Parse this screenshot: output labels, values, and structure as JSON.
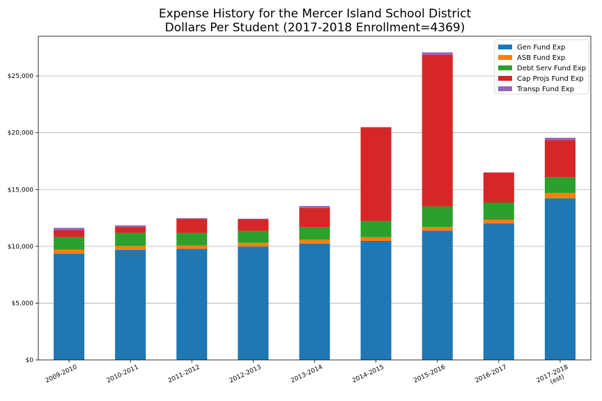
{
  "chart_data": {
    "type": "bar",
    "stacked": true,
    "title": [
      "Expense History for the Mercer Island School District",
      "Dollars Per Student (2017-2018 Enrollment=4369)"
    ],
    "xlabel": "",
    "ylabel": "",
    "categories": [
      "2009-2010",
      "2010-2011",
      "2011-2012",
      "2012-2013",
      "2013-2014",
      "2014-2015",
      "2015-2016",
      "2016-2017",
      "2017-2018\n(est)"
    ],
    "ylim": [
      0,
      28500
    ],
    "yticks": [
      0,
      5000,
      10000,
      15000,
      20000,
      25000
    ],
    "ytick_labels": [
      "$0",
      "$5,000",
      "$10,000",
      "$15,000",
      "$20,000",
      "$25,000"
    ],
    "grid": "horizontal",
    "legend_position": "top-right",
    "series": [
      {
        "name": "Gen Fund Exp",
        "color": "#1f77b4",
        "values": [
          9350,
          9700,
          9780,
          9980,
          10250,
          10480,
          11380,
          12030,
          14230
        ]
      },
      {
        "name": "ASB Fund Exp",
        "color": "#ff7f0e",
        "values": [
          350,
          330,
          300,
          330,
          350,
          320,
          330,
          300,
          480
        ]
      },
      {
        "name": "Debt Serv Fund Exp",
        "color": "#2ca02c",
        "values": [
          1100,
          1150,
          1100,
          1050,
          1100,
          1420,
          1800,
          1520,
          1370
        ]
      },
      {
        "name": "Cap Projs Fund Exp",
        "color": "#d62728",
        "values": [
          650,
          520,
          1230,
          1020,
          1680,
          8250,
          13360,
          2640,
          3280
        ]
      },
      {
        "name": "Transp Fund Exp",
        "color": "#9467bd",
        "values": [
          180,
          150,
          70,
          50,
          170,
          30,
          210,
          20,
          200
        ]
      }
    ]
  }
}
